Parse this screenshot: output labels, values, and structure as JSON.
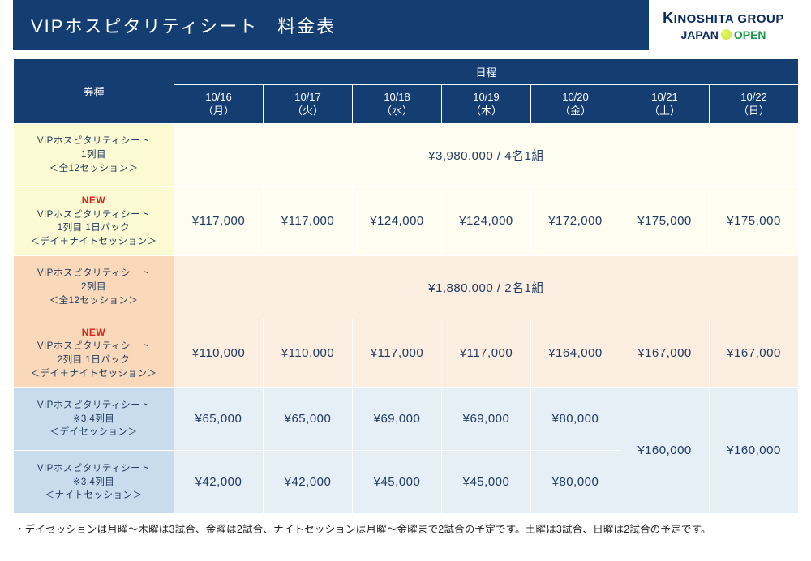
{
  "colors": {
    "header_bg": "#143d72",
    "row1_bg": "#fbfad2",
    "row2_bg": "#fdfdf2",
    "row3_bg": "#f9d9b9",
    "row4_bg": "#fceee0",
    "row5_bg": "#c9dcec",
    "row6_bg": "#e6eef6"
  },
  "header": {
    "title": "VIPホスピタリティシート　料金表",
    "logo1_k": "K",
    "logo1_rest": "INOSHITA GROUP",
    "logo2_japan": "JAPAN",
    "logo2_open": "OPEN"
  },
  "thead": {
    "ticket_type": "券種",
    "schedule": "日程",
    "days": [
      {
        "d": "10/16",
        "w": "（月）"
      },
      {
        "d": "10/17",
        "w": "（火）"
      },
      {
        "d": "10/18",
        "w": "（水）"
      },
      {
        "d": "10/19",
        "w": "（木）"
      },
      {
        "d": "10/20",
        "w": "（金）"
      },
      {
        "d": "10/21",
        "w": "（土）"
      },
      {
        "d": "10/22",
        "w": "（日）"
      }
    ]
  },
  "rows": {
    "r1": {
      "label_l1": "VIPホスピタリティシート",
      "label_l2": "1列目",
      "label_l3": "＜全12セッション＞",
      "price": "¥3,980,000 / 4名1組"
    },
    "r2": {
      "new": "NEW",
      "label_l1": "VIPホスピタリティシート",
      "label_l2": "1列目 1日パック",
      "label_l3": "＜デイ＋ナイトセッション＞",
      "p": [
        "¥117,000",
        "¥117,000",
        "¥124,000",
        "¥124,000",
        "¥172,000",
        "¥175,000",
        "¥175,000"
      ]
    },
    "r3": {
      "label_l1": "VIPホスピタリティシート",
      "label_l2": "2列目",
      "label_l3": "＜全12セッション＞",
      "price": "¥1,880,000 / 2名1組"
    },
    "r4": {
      "new": "NEW",
      "label_l1": "VIPホスピタリティシート",
      "label_l2": "2列目 1日パック",
      "label_l3": "＜デイ＋ナイトセッション＞",
      "p": [
        "¥110,000",
        "¥110,000",
        "¥117,000",
        "¥117,000",
        "¥164,000",
        "¥167,000",
        "¥167,000"
      ]
    },
    "r5": {
      "label_l1": "VIPホスピタリティシート",
      "label_l2": "※3,4列目",
      "label_l3": "＜デイセッション＞",
      "p": [
        "¥65,000",
        "¥65,000",
        "¥69,000",
        "¥69,000",
        "¥80,000"
      ],
      "sat": "¥160,000",
      "sun": "¥160,000"
    },
    "r6": {
      "label_l1": "VIPホスピタリティシート",
      "label_l2": "※3,4列目",
      "label_l3": "＜ナイトセッション＞",
      "p": [
        "¥42,000",
        "¥42,000",
        "¥45,000",
        "¥45,000",
        "¥80,000"
      ]
    }
  },
  "note": "・デイセッションは月曜～木曜は3試合、金曜は2試合、ナイトセッションは月曜～金曜まで2試合の予定です。土曜は3試合、日曜は2試合の予定です。"
}
